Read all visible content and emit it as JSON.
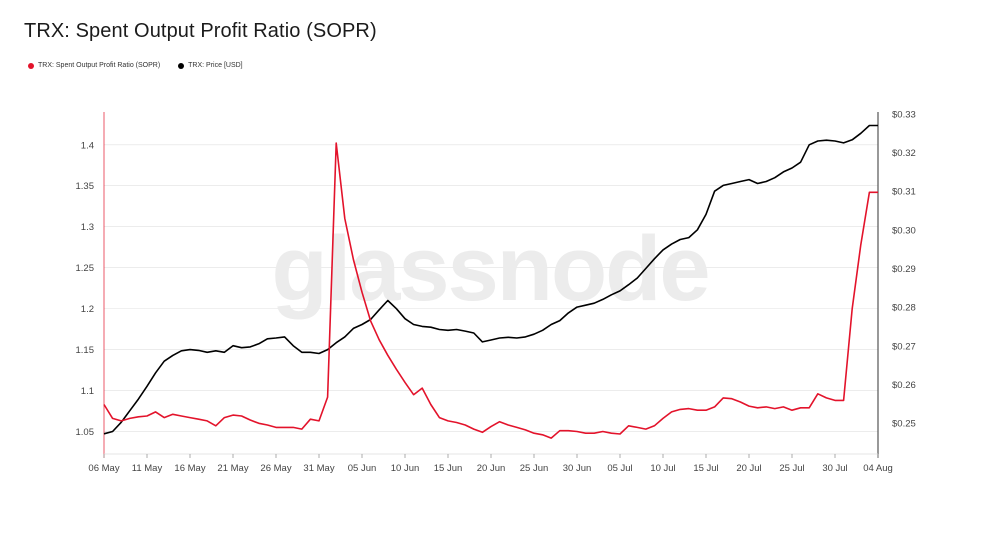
{
  "title": "TRX: Spent Output Profit Ratio (SOPR)",
  "watermark": "glassnode",
  "colors": {
    "sopr": "#e3132b",
    "price": "#000000",
    "grid": "#e0e0e0"
  },
  "legend": [
    {
      "label": "TRX: Spent Output Profit Ratio (SOPR)",
      "color": "#e3132b"
    },
    {
      "label": "TRX: Price [USD]",
      "color": "#000000"
    }
  ],
  "chart_data": {
    "type": "line",
    "x_ticks": [
      "06 May",
      "11 May",
      "16 May",
      "21 May",
      "26 May",
      "31 May",
      "05 Jun",
      "10 Jun",
      "15 Jun",
      "20 Jun",
      "25 Jun",
      "30 Jun",
      "05 Jul",
      "10 Jul",
      "15 Jul",
      "20 Jul",
      "25 Jul",
      "30 Jul",
      "04 Aug"
    ],
    "y_left_ticks": [
      "1.05",
      "1.1",
      "1.15",
      "1.2",
      "1.25",
      "1.3",
      "1.35",
      "1.4"
    ],
    "y_right_ticks": [
      "$0.25",
      "$0.26",
      "$0.27",
      "$0.28",
      "$0.29",
      "$0.30",
      "$0.31",
      "$0.32",
      "$0.33"
    ],
    "y_left_range": [
      1.025,
      1.44
    ],
    "y_right_range": [
      0.2425,
      0.3305
    ],
    "x_range_days": [
      0,
      90
    ],
    "x_start_date": "2023-05-06",
    "grid": true,
    "series": [
      {
        "name": "TRX: Spent Output Profit Ratio (SOPR)",
        "axis": "left",
        "x_days": [
          0,
          1,
          2,
          3,
          4,
          5,
          6,
          7,
          8,
          9,
          10,
          11,
          12,
          13,
          14,
          15,
          16,
          17,
          18,
          19,
          20,
          21,
          22,
          23,
          24,
          25,
          26,
          27,
          28,
          29,
          30,
          31,
          32,
          33,
          34,
          35,
          36,
          37,
          38,
          39,
          40,
          41,
          42,
          43,
          44,
          45,
          46,
          47,
          48,
          49,
          50,
          51,
          52,
          53,
          54,
          55,
          56,
          57,
          58,
          59,
          60,
          61,
          62,
          63,
          64,
          65,
          66,
          67,
          68,
          69,
          70,
          71,
          72,
          73,
          74,
          75,
          76,
          77,
          78,
          79,
          80,
          81,
          82,
          83,
          84,
          85,
          86,
          87,
          88,
          89,
          90
        ],
        "values": [
          1.083,
          1.066,
          1.063,
          1.066,
          1.068,
          1.069,
          1.074,
          1.067,
          1.071,
          1.069,
          1.067,
          1.065,
          1.063,
          1.057,
          1.067,
          1.07,
          1.069,
          1.064,
          1.06,
          1.058,
          1.055,
          1.055,
          1.055,
          1.053,
          1.065,
          1.063,
          1.092,
          1.402,
          1.31,
          1.26,
          1.22,
          1.185,
          1.162,
          1.143,
          1.126,
          1.11,
          1.095,
          1.103,
          1.083,
          1.067,
          1.063,
          1.061,
          1.058,
          1.053,
          1.049,
          1.056,
          1.062,
          1.058,
          1.055,
          1.052,
          1.048,
          1.046,
          1.042,
          1.051,
          1.051,
          1.05,
          1.048,
          1.048,
          1.05,
          1.048,
          1.047,
          1.057,
          1.055,
          1.053,
          1.057,
          1.066,
          1.074,
          1.077,
          1.078,
          1.076,
          1.076,
          1.08,
          1.091,
          1.09,
          1.086,
          1.081,
          1.079,
          1.08,
          1.078,
          1.08,
          1.076,
          1.079,
          1.079,
          1.096,
          1.091,
          1.088,
          1.088,
          1.2,
          1.278,
          1.342,
          1.342
        ]
      },
      {
        "name": "TRX: Price [USD]",
        "axis": "right",
        "x_days": [
          0,
          1,
          2,
          3,
          4,
          5,
          6,
          7,
          8,
          9,
          10,
          11,
          12,
          13,
          14,
          15,
          16,
          17,
          18,
          19,
          20,
          21,
          22,
          23,
          24,
          25,
          26,
          27,
          28,
          29,
          30,
          31,
          32,
          33,
          34,
          35,
          36,
          37,
          38,
          39,
          40,
          41,
          42,
          43,
          44,
          45,
          46,
          47,
          48,
          49,
          50,
          51,
          52,
          53,
          54,
          55,
          56,
          57,
          58,
          59,
          60,
          61,
          62,
          63,
          64,
          65,
          66,
          67,
          68,
          69,
          70,
          71,
          72,
          73,
          74,
          75,
          76,
          77,
          78,
          79,
          80,
          81,
          82,
          83,
          84,
          85,
          86,
          87,
          88,
          89,
          90
        ],
        "values": [
          0.2472,
          0.2478,
          0.2502,
          0.2532,
          0.2562,
          0.2595,
          0.263,
          0.266,
          0.2675,
          0.2687,
          0.269,
          0.2688,
          0.2683,
          0.2687,
          0.2683,
          0.27,
          0.2695,
          0.2697,
          0.2705,
          0.2718,
          0.272,
          0.2723,
          0.27,
          0.2683,
          0.2683,
          0.268,
          0.269,
          0.2708,
          0.2723,
          0.2745,
          0.2755,
          0.2768,
          0.2793,
          0.2817,
          0.2796,
          0.277,
          0.2755,
          0.275,
          0.2748,
          0.2742,
          0.274,
          0.2742,
          0.2738,
          0.2733,
          0.271,
          0.2715,
          0.272,
          0.2722,
          0.272,
          0.2723,
          0.273,
          0.274,
          0.2755,
          0.2765,
          0.2785,
          0.28,
          0.2805,
          0.281,
          0.282,
          0.2832,
          0.2842,
          0.2858,
          0.2875,
          0.29,
          0.2925,
          0.2948,
          0.2963,
          0.2975,
          0.298,
          0.3,
          0.304,
          0.31,
          0.3115,
          0.312,
          0.3125,
          0.313,
          0.312,
          0.3125,
          0.3135,
          0.315,
          0.316,
          0.3175,
          0.322,
          0.323,
          0.3232,
          0.323,
          0.3225,
          0.3233,
          0.325,
          0.327,
          0.327
        ]
      }
    ]
  }
}
